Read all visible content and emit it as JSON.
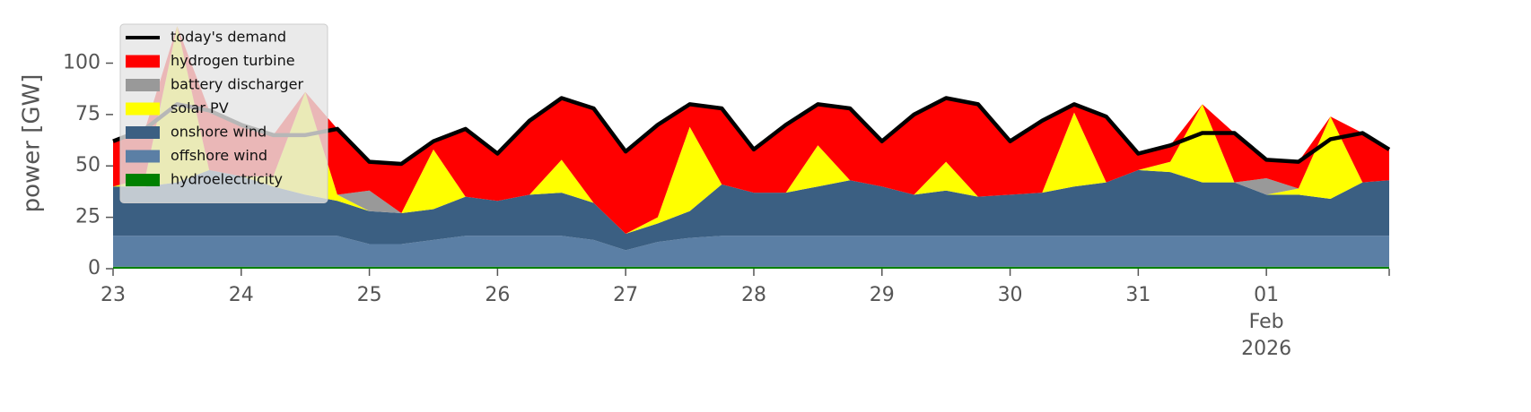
{
  "chart_data": {
    "type": "stacked_area",
    "ylabel": "power [GW]",
    "x": [
      "2026-01-23T00:00",
      "2026-01-23T06:00",
      "2026-01-23T12:00",
      "2026-01-23T18:00",
      "2026-01-24T00:00",
      "2026-01-24T06:00",
      "2026-01-24T12:00",
      "2026-01-24T18:00",
      "2026-01-25T00:00",
      "2026-01-25T06:00",
      "2026-01-25T12:00",
      "2026-01-25T18:00",
      "2026-01-26T00:00",
      "2026-01-26T06:00",
      "2026-01-26T12:00",
      "2026-01-26T18:00",
      "2026-01-27T00:00",
      "2026-01-27T06:00",
      "2026-01-27T12:00",
      "2026-01-27T18:00",
      "2026-01-28T00:00",
      "2026-01-28T06:00",
      "2026-01-28T12:00",
      "2026-01-28T18:00",
      "2026-01-29T00:00",
      "2026-01-29T06:00",
      "2026-01-29T12:00",
      "2026-01-29T18:00",
      "2026-01-30T00:00",
      "2026-01-30T06:00",
      "2026-01-30T12:00",
      "2026-01-30T18:00",
      "2026-01-31T00:00",
      "2026-01-31T06:00",
      "2026-01-31T12:00",
      "2026-01-31T18:00",
      "2026-02-01T00:00",
      "2026-02-01T06:00",
      "2026-02-01T12:00",
      "2026-02-01T18:00",
      "2026-02-01T23:00"
    ],
    "xlim": [
      "2026-01-23T00:00",
      "2026-02-01T23:00"
    ],
    "xticks": [
      {
        "value": "2026-01-23T00:00",
        "label": "23"
      },
      {
        "value": "2026-01-24T00:00",
        "label": "24"
      },
      {
        "value": "2026-01-25T00:00",
        "label": "25"
      },
      {
        "value": "2026-01-26T00:00",
        "label": "26"
      },
      {
        "value": "2026-01-27T00:00",
        "label": "27"
      },
      {
        "value": "2026-01-28T00:00",
        "label": "28"
      },
      {
        "value": "2026-01-29T00:00",
        "label": "29"
      },
      {
        "value": "2026-01-30T00:00",
        "label": "30"
      },
      {
        "value": "2026-01-31T00:00",
        "label": "31"
      },
      {
        "value": "2026-02-01T00:00",
        "label": "01"
      }
    ],
    "xtick_month": "Feb",
    "xtick_year": "2026",
    "ylim": [
      0,
      122
    ],
    "yticks": [
      0,
      25,
      50,
      75,
      100
    ],
    "legend": "upper left",
    "line": {
      "name": "today's demand",
      "color": "#000000",
      "values": [
        62,
        68,
        80,
        77,
        70,
        65,
        65,
        68,
        52,
        51,
        62,
        68,
        56,
        72,
        83,
        78,
        57,
        70,
        80,
        78,
        58,
        70,
        80,
        78,
        62,
        75,
        83,
        80,
        62,
        72,
        80,
        74,
        56,
        60,
        66,
        66,
        53,
        52,
        63,
        66,
        58
      ]
    },
    "series": [
      {
        "name": "hydrogen turbine",
        "color": "#ff0000",
        "values": [
          22,
          24,
          0,
          29,
          25,
          20,
          0,
          32,
          14,
          24,
          4,
          33,
          23,
          36,
          30,
          46,
          40,
          45,
          11,
          37,
          21,
          33,
          20,
          35,
          22,
          39,
          31,
          45,
          26,
          35,
          4,
          32,
          8,
          8,
          0,
          24,
          9,
          13,
          0,
          24,
          15
        ]
      },
      {
        "name": "battery discharger",
        "color": "#999999",
        "values": [
          0,
          0,
          0,
          0,
          0,
          0,
          0,
          0,
          10,
          0,
          0,
          0,
          0,
          0,
          0,
          0,
          0,
          0,
          0,
          0,
          0,
          0,
          0,
          0,
          0,
          0,
          0,
          0,
          0,
          0,
          0,
          0,
          0,
          0,
          0,
          0,
          8,
          0,
          0,
          0,
          0
        ]
      },
      {
        "name": "solar PV",
        "color": "#ffff00",
        "values": [
          0,
          4,
          76,
          0,
          0,
          5,
          50,
          3,
          0,
          0,
          29,
          0,
          0,
          0,
          16,
          0,
          0,
          3,
          41,
          0,
          0,
          0,
          20,
          0,
          0,
          0,
          14,
          0,
          0,
          0,
          36,
          0,
          0,
          5,
          38,
          0,
          0,
          3,
          40,
          0,
          0
        ]
      },
      {
        "name": "onshore wind",
        "color": "#3b5f82",
        "values": [
          24,
          24,
          26,
          32,
          29,
          24,
          20,
          17,
          16,
          15,
          15,
          19,
          17,
          20,
          21,
          18,
          8,
          9,
          13,
          25,
          21,
          21,
          24,
          27,
          24,
          20,
          22,
          19,
          20,
          21,
          24,
          26,
          32,
          31,
          26,
          26,
          20,
          20,
          18,
          26,
          27
        ]
      },
      {
        "name": "offshore wind",
        "color": "#5b7fa5",
        "values": [
          15,
          15,
          15,
          15,
          15,
          15,
          15,
          15,
          11,
          11,
          13,
          15,
          15,
          15,
          15,
          13,
          8,
          12,
          14,
          15,
          15,
          15,
          15,
          15,
          15,
          15,
          15,
          15,
          15,
          15,
          15,
          15,
          15,
          15,
          15,
          15,
          15,
          15,
          15,
          15,
          15
        ]
      },
      {
        "name": "hydroelectricity",
        "color": "#008000",
        "values": [
          1,
          1,
          1,
          1,
          1,
          1,
          1,
          1,
          1,
          1,
          1,
          1,
          1,
          1,
          1,
          1,
          1,
          1,
          1,
          1,
          1,
          1,
          1,
          1,
          1,
          1,
          1,
          1,
          1,
          1,
          1,
          1,
          1,
          1,
          1,
          1,
          1,
          1,
          1,
          1,
          1
        ]
      }
    ]
  }
}
